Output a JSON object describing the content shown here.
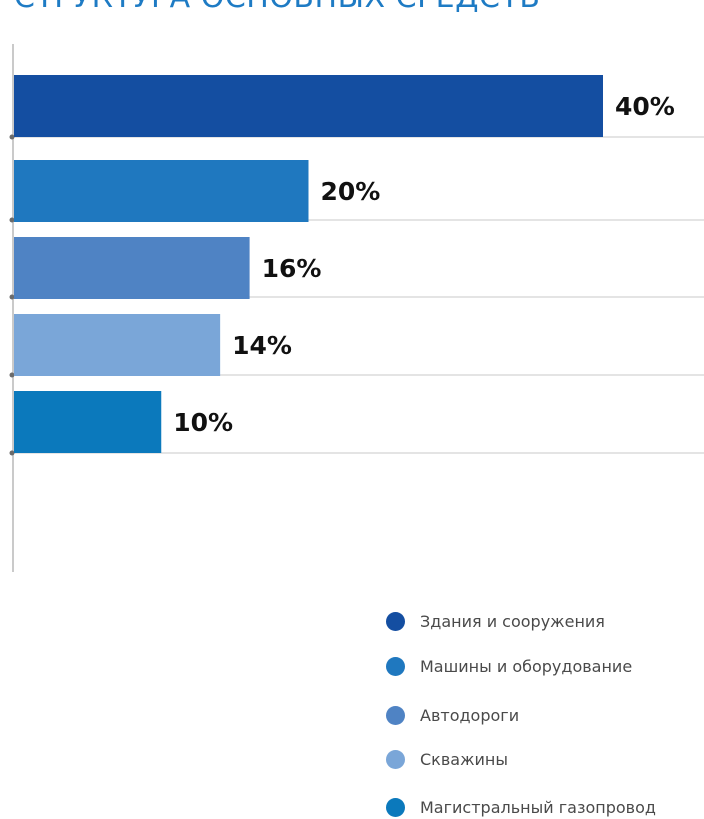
{
  "title": "СТРУКТУРА ОСНОВНЫХ СРЕДСТВ",
  "chart_data": {
    "type": "bar",
    "orientation": "horizontal",
    "categories": [
      "Здания и сооружения",
      "Машины и оборудование",
      "Автодороги",
      "Скважины",
      "Магистральный газопровод"
    ],
    "values": [
      40,
      20,
      16,
      14,
      10
    ],
    "value_labels": [
      "40%",
      "20%",
      "16%",
      "14%",
      "10%"
    ],
    "colors": [
      "#144ea1",
      "#1f78bf",
      "#4f83c4",
      "#7aa6d8",
      "#0b79bc"
    ],
    "xlim": [
      0,
      40
    ],
    "grid": true,
    "legend": "bottom-right"
  }
}
